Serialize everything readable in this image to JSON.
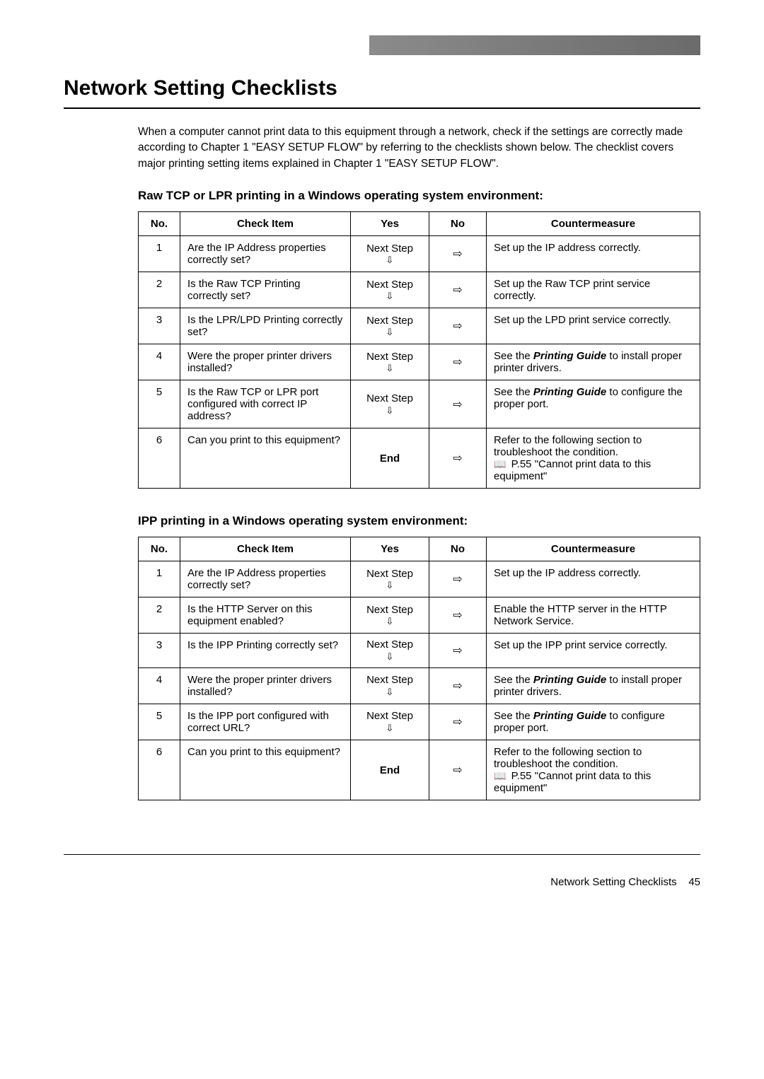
{
  "topbar": {
    "bg_left": "#ffffff",
    "bg_right": "#6b6b6b"
  },
  "title": "Network Setting Checklists",
  "intro": "When a computer cannot print data to this equipment through a network, check if the settings are correctly made according to Chapter 1 \"EASY SETUP FLOW\" by referring to the checklists shown below. The checklist covers major printing setting items explained in Chapter 1 \"EASY SETUP FLOW\".",
  "arrow_down_glyph": "⇩",
  "arrow_right_glyph": "⇨",
  "book_glyph": "📖",
  "table_headers": {
    "no": "No.",
    "check": "Check Item",
    "yes": "Yes",
    "no_h": "No",
    "counter": "Countermeasure"
  },
  "yes_label": "Next Step",
  "end_label": "End",
  "section1": {
    "heading": "Raw TCP or LPR printing in a Windows operating system environment:",
    "rows": [
      {
        "n": "1",
        "check": "Are the IP Address properties correctly set?",
        "yes_type": "next",
        "counter_html": "Set up the IP address correctly."
      },
      {
        "n": "2",
        "check": "Is the Raw TCP Printing correctly set?",
        "yes_type": "next",
        "counter_html": "Set up the Raw TCP print service correctly."
      },
      {
        "n": "3",
        "check": "Is the LPR/LPD Printing correctly set?",
        "yes_type": "next",
        "counter_html": "Set up the LPD print service correctly."
      },
      {
        "n": "4",
        "check": "Were the proper printer drivers installed?",
        "yes_type": "next",
        "counter_html": "See the <em class='pg'>Printing Guide</em> to install proper printer drivers."
      },
      {
        "n": "5",
        "check": "Is the Raw TCP or LPR port configured with correct IP address?",
        "yes_type": "next",
        "counter_html": "See the <em class='pg'>Printing Guide</em> to configure the proper port."
      },
      {
        "n": "6",
        "check": "Can you print to this equipment?",
        "yes_type": "end",
        "counter_html": "Refer to the following section to troubleshoot the condition.<br><span class='bookicon'>📖</span> P.55 \"Cannot print data to this equipment\""
      }
    ]
  },
  "section2": {
    "heading": "IPP printing in a Windows operating system environment:",
    "rows": [
      {
        "n": "1",
        "check": "Are the IP Address properties correctly set?",
        "yes_type": "next",
        "counter_html": "Set up the IP address correctly."
      },
      {
        "n": "2",
        "check": "Is the HTTP Server on this equipment enabled?",
        "yes_type": "next",
        "counter_html": "Enable the HTTP server in the HTTP Network Service."
      },
      {
        "n": "3",
        "check": "Is the IPP Printing correctly set?",
        "yes_type": "next",
        "counter_html": "Set up the IPP print service correctly."
      },
      {
        "n": "4",
        "check": "Were the proper printer drivers installed?",
        "yes_type": "next",
        "counter_html": "See the <em class='pg'>Printing Guide</em> to install proper printer drivers."
      },
      {
        "n": "5",
        "check": "Is the IPP port configured with correct URL?",
        "yes_type": "next",
        "counter_html": "See the <em class='pg'>Printing Guide</em> to configure proper port."
      },
      {
        "n": "6",
        "check": "Can you print to this equipment?",
        "yes_type": "end",
        "counter_html": "Refer to the following section to troubleshoot the condition.<br><span class='bookicon'>📖</span> P.55 \"Cannot print data to this equipment\""
      }
    ]
  },
  "footer": {
    "text": "Network Setting Checklists",
    "page": "45"
  }
}
